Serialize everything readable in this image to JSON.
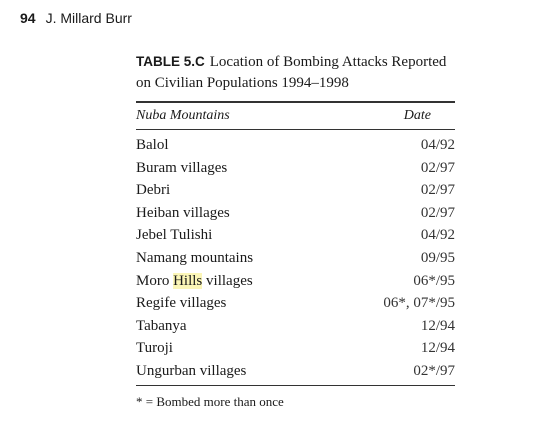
{
  "running_head": {
    "page_number": "94",
    "author": "J. Millard Burr"
  },
  "table": {
    "label": "TABLE 5.C",
    "title": "Location of Bombing Attacks Reported on Civilian Populations 1994–1998",
    "columns": [
      "Nuba Mountains",
      "Date"
    ],
    "rows": [
      {
        "place": "Balol",
        "date": "04/92"
      },
      {
        "place_parts": [
          "Buram villages"
        ],
        "place": "Buram villages",
        "date": "02/97"
      },
      {
        "place": "Debri",
        "date": "02/97"
      },
      {
        "place": "Heiban villages",
        "date": "02/97"
      },
      {
        "place": "Jebel Tulishi",
        "date": "04/92"
      },
      {
        "place": "Namang mountains",
        "date": "09/95"
      },
      {
        "place_pre": "Moro ",
        "place_highlight": "Hills",
        "place_post": " villages",
        "date": "06*/95"
      },
      {
        "place": "Regife villages",
        "date": "06*, 07*/95"
      },
      {
        "place": "Tabanya",
        "date": "12/94"
      },
      {
        "place": "Turoji",
        "date": "12/94"
      },
      {
        "place": "Ungurban villages",
        "date": "02*/97"
      }
    ],
    "footnote": "* = Bombed more than once",
    "highlight_color": "#fbf6b7"
  }
}
